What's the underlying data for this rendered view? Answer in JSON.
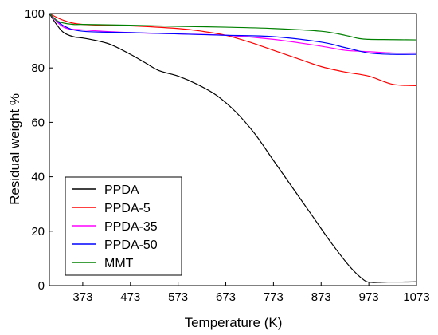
{
  "chart_data": {
    "type": "line",
    "xlabel": "Temperature (K)",
    "ylabel": "Residual weight %",
    "xlim": [
      303,
      1073
    ],
    "ylim": [
      0,
      100
    ],
    "xticks": [
      373,
      473,
      573,
      673,
      773,
      873,
      973,
      1073
    ],
    "yticks": [
      0,
      20,
      40,
      60,
      80,
      100
    ],
    "grid": false,
    "legend_position": "bottom-left",
    "series": [
      {
        "name": "PPDA",
        "color": "#000000",
        "x": [
          303,
          318,
          333,
          353,
          373,
          403,
          433,
          473,
          503,
          533,
          573,
          613,
          653,
          693,
          733,
          773,
          813,
          853,
          893,
          933,
          963,
          978,
          993,
          1013,
          1043,
          1073
        ],
        "y": [
          100,
          96,
          93,
          91.5,
          91,
          90,
          88.5,
          85,
          82,
          79,
          77,
          74,
          70,
          64,
          56,
          46,
          36,
          26,
          16,
          7,
          2,
          1.2,
          1.2,
          1.3,
          1.3,
          1.4
        ]
      },
      {
        "name": "PPDA-5",
        "color": "#ff0000",
        "x": [
          303,
          333,
          373,
          473,
          573,
          623,
          673,
          723,
          773,
          823,
          873,
          923,
          973,
          1023,
          1073
        ],
        "y": [
          100,
          97.5,
          96,
          95.5,
          94.5,
          93.5,
          92,
          89.5,
          86.5,
          83.5,
          80.5,
          78.5,
          77,
          74,
          73.5
        ]
      },
      {
        "name": "PPDA-35",
        "color": "#ff00ff",
        "x": [
          303,
          333,
          373,
          473,
          573,
          673,
          773,
          873,
          923,
          973,
          1023,
          1073
        ],
        "y": [
          100,
          95,
          94,
          93,
          92.5,
          92,
          90.5,
          88,
          86.5,
          86,
          85.5,
          85.5
        ]
      },
      {
        "name": "PPDA-50",
        "color": "#0000ff",
        "x": [
          303,
          333,
          373,
          473,
          573,
          673,
          773,
          873,
          923,
          973,
          1023,
          1073
        ],
        "y": [
          100,
          95.5,
          93.5,
          93,
          92.5,
          92,
          91.5,
          89.5,
          87.5,
          85.5,
          85,
          85
        ]
      },
      {
        "name": "MMT",
        "color": "#008000",
        "x": [
          303,
          323,
          353,
          373,
          473,
          573,
          673,
          773,
          873,
          923,
          953,
          973,
          1023,
          1073
        ],
        "y": [
          100,
          97,
          96,
          96,
          95.7,
          95.3,
          95,
          94.5,
          93.5,
          92,
          90.8,
          90.5,
          90.4,
          90.3
        ]
      }
    ]
  }
}
